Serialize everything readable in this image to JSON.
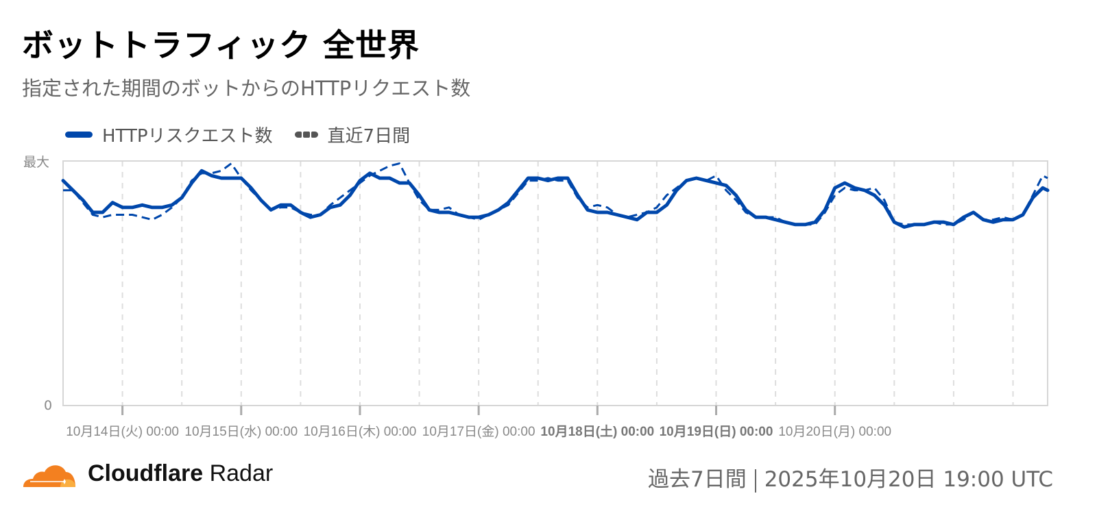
{
  "header": {
    "title": "ボットトラフィック 全世界",
    "subtitle": "指定された期間のボットからのHTTPリクエスト数"
  },
  "legend": {
    "items": [
      {
        "label": "HTTPリスクエスト数",
        "style": "solid",
        "color": "#0047ab"
      },
      {
        "label": "直近7日間",
        "style": "dashed",
        "color": "#555555"
      }
    ]
  },
  "axis": {
    "y_max_label": "最大",
    "y_min_label": "0"
  },
  "footer": {
    "brand_bold": "Cloudflare",
    "brand_light": "Radar",
    "period": "過去7日間",
    "timestamp": "2025年10月20日 19:00 UTC"
  },
  "colors": {
    "series": "#0047ab",
    "grid": "#dddddd",
    "axis": "#cccccc",
    "logo_orange": "#f38020",
    "logo_light": "#faae40"
  },
  "chart_data": {
    "type": "line",
    "title": "ボットトラフィック 全世界",
    "subtitle": "指定された期間のボットからのHTTPリクエスト数",
    "xlabel": "",
    "ylabel": "",
    "ylim": [
      0,
      100
    ],
    "y_tick_labels": [
      "0",
      "最大"
    ],
    "x_tick_labels": [
      {
        "label": "10月14日(火) 00:00",
        "bold": false
      },
      {
        "label": "10月15日(水) 00:00",
        "bold": false
      },
      {
        "label": "10月16日(木) 00:00",
        "bold": false
      },
      {
        "label": "10月17日(金) 00:00",
        "bold": false
      },
      {
        "label": "10月18日(土) 00:00",
        "bold": true
      },
      {
        "label": "10月19日(日) 00:00",
        "bold": true
      },
      {
        "label": "10月20日(月) 00:00",
        "bold": false
      }
    ],
    "x_range_hours": [
      -12,
      187
    ],
    "grid": {
      "vertical_dashed_every_hours": 12,
      "horizontal": false
    },
    "legend_position": "top-left",
    "series": [
      {
        "name": "HTTPリスクエスト数",
        "style": "solid",
        "x_hours": [
          -12,
          -10,
          -8,
          -6,
          -4,
          -2,
          0,
          2,
          4,
          6,
          8,
          10,
          12,
          14,
          16,
          18,
          20,
          22,
          24,
          26,
          28,
          30,
          32,
          34,
          36,
          38,
          40,
          42,
          44,
          46,
          48,
          50,
          52,
          54,
          56,
          58,
          60,
          62,
          64,
          66,
          68,
          70,
          72,
          74,
          76,
          78,
          80,
          82,
          84,
          86,
          88,
          90,
          92,
          94,
          96,
          98,
          100,
          102,
          104,
          106,
          108,
          110,
          112,
          114,
          116,
          118,
          120,
          122,
          124,
          126,
          128,
          130,
          132,
          134,
          136,
          138,
          140,
          142,
          144,
          146,
          148,
          150,
          152,
          154,
          156,
          158,
          160,
          162,
          164,
          166,
          168,
          170,
          172,
          174,
          176,
          178,
          180,
          182,
          184,
          186,
          187
        ],
        "values": [
          92,
          88,
          84,
          79,
          79,
          83,
          81,
          81,
          82,
          81,
          81,
          82,
          85,
          91,
          96,
          94,
          93,
          93,
          93,
          89,
          84,
          80,
          82,
          82,
          79,
          77,
          78,
          81,
          82,
          86,
          92,
          95,
          93,
          93,
          91,
          91,
          86,
          80,
          79,
          79,
          78,
          77,
          77,
          78,
          80,
          83,
          88,
          93,
          93,
          92,
          93,
          93,
          86,
          80,
          79,
          79,
          78,
          77,
          76,
          79,
          79,
          82,
          88,
          92,
          93,
          92,
          91,
          90,
          86,
          80,
          77,
          77,
          76,
          75,
          74,
          74,
          75,
          80,
          89,
          91,
          89,
          88,
          86,
          82,
          75,
          73,
          74,
          74,
          75,
          75,
          74,
          77,
          79,
          76,
          75,
          76,
          76,
          78,
          85,
          89,
          88
        ]
      },
      {
        "name": "直近7日間",
        "style": "dashed",
        "x_hours": [
          -12,
          -10,
          -8,
          -6,
          -4,
          -2,
          0,
          2,
          4,
          6,
          8,
          10,
          12,
          14,
          16,
          18,
          20,
          22,
          24,
          26,
          28,
          30,
          32,
          34,
          36,
          38,
          40,
          42,
          44,
          46,
          48,
          50,
          52,
          54,
          56,
          58,
          60,
          62,
          64,
          66,
          68,
          70,
          72,
          74,
          76,
          78,
          80,
          82,
          84,
          86,
          88,
          90,
          92,
          94,
          96,
          98,
          100,
          102,
          104,
          106,
          108,
          110,
          112,
          114,
          116,
          118,
          120,
          122,
          124,
          126,
          128,
          130,
          132,
          134,
          136,
          138,
          140,
          142,
          144,
          146,
          148,
          150,
          152,
          154,
          156,
          158,
          160,
          162,
          164,
          166,
          168,
          170,
          172,
          174,
          176,
          178,
          180,
          182,
          184,
          186,
          187
        ],
        "values": [
          88,
          88,
          83,
          78,
          77,
          78,
          78,
          78,
          77,
          76,
          78,
          81,
          85,
          92,
          95,
          95,
          96,
          99,
          93,
          88,
          84,
          80,
          81,
          81,
          79,
          78,
          78,
          82,
          85,
          88,
          91,
          94,
          96,
          98,
          99,
          91,
          84,
          80,
          80,
          81,
          78,
          77,
          76,
          78,
          80,
          82,
          87,
          92,
          92,
          93,
          92,
          92,
          85,
          81,
          82,
          81,
          78,
          77,
          78,
          79,
          81,
          86,
          89,
          92,
          93,
          92,
          94,
          88,
          84,
          79,
          77,
          77,
          77,
          75,
          74,
          74,
          74,
          79,
          86,
          89,
          88,
          88,
          89,
          84,
          75,
          74,
          74,
          74,
          75,
          74,
          74,
          76,
          79,
          76,
          76,
          77,
          76,
          78,
          86,
          94,
          93
        ]
      }
    ]
  }
}
